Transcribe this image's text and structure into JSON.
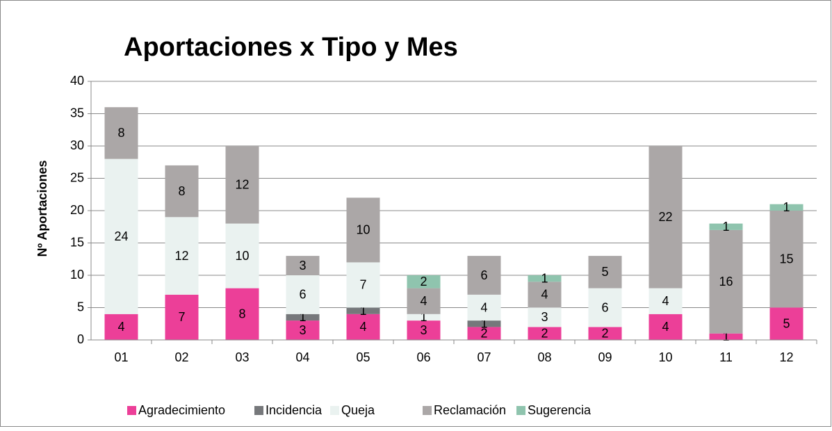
{
  "chart_data": {
    "type": "stacked_bar",
    "title": "Aportaciones x Tipo y Mes",
    "y_label": "Nº Aportaciones",
    "categories": [
      "01",
      "02",
      "03",
      "04",
      "05",
      "06",
      "07",
      "08",
      "09",
      "10",
      "11",
      "12"
    ],
    "series": [
      {
        "name": "Agradecimiento",
        "color": "#ec3f98",
        "values": [
          4,
          7,
          8,
          3,
          4,
          3,
          2,
          2,
          2,
          4,
          1,
          5
        ]
      },
      {
        "name": "Incidencia",
        "color": "#76787b",
        "values": [
          null,
          null,
          null,
          1,
          1,
          null,
          1,
          null,
          null,
          null,
          null,
          null
        ]
      },
      {
        "name": "Queja",
        "color": "#eaf2f0",
        "values": [
          24,
          12,
          10,
          6,
          7,
          1,
          4,
          3,
          6,
          4,
          null,
          null
        ]
      },
      {
        "name": "Reclamación",
        "color": "#aba7a7",
        "values": [
          8,
          8,
          12,
          3,
          10,
          4,
          6,
          4,
          5,
          22,
          16,
          15
        ]
      },
      {
        "name": "Sugerencia",
        "color": "#8fc4ae",
        "values": [
          null,
          null,
          null,
          null,
          null,
          2,
          null,
          1,
          null,
          null,
          1,
          1
        ]
      }
    ],
    "ylim": [
      0,
      40
    ],
    "yticks": [
      0,
      5,
      10,
      15,
      20,
      25,
      30,
      35,
      40
    ],
    "grid": true,
    "legend": "bottom"
  }
}
